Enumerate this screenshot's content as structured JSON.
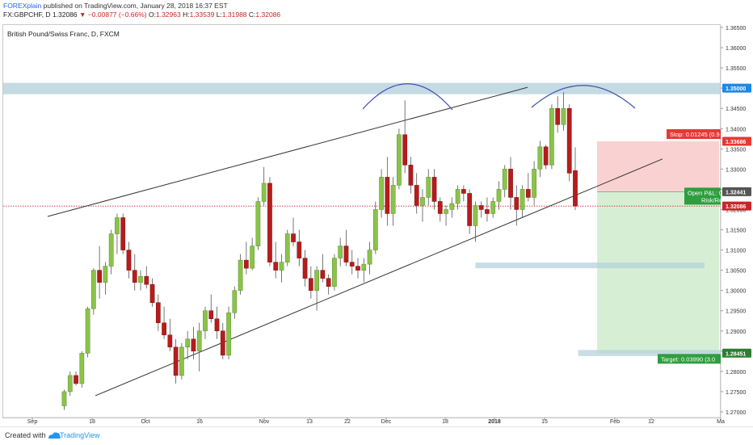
{
  "header": {
    "author": "FOREXplain",
    "published_text": "published on TradingView.com, January 28, 2018 16:37 EST",
    "symbol": "FX:GBPCHF, D",
    "last": "1.32086",
    "change": "−0.00877 (−0.66%)",
    "o_label": "O:",
    "o_value": "1.32963",
    "h_label": "H:",
    "h_value": "1.33539",
    "l_label": "L:",
    "l_value": "1.31988",
    "c_label": "C:",
    "c_value": "1.32086"
  },
  "footer": {
    "created_with": "Created with",
    "brand": "TradingView"
  },
  "colors": {
    "up": "#8bc34a",
    "down": "#b71c1c",
    "zone": "#b6d2dc",
    "stop_zone": "#f9c9c9",
    "target_zone": "#cfeccd",
    "price_line": "#c62828"
  },
  "chart_data": {
    "type": "candlestick",
    "title": "British Pound/Swiss Franc, D, FXCM",
    "y_ticks": [
      "1.27000",
      "1.27500",
      "1.28000",
      "1.28500",
      "1.29000",
      "1.29500",
      "1.30000",
      "1.30500",
      "1.31000",
      "1.31500",
      "1.32000",
      "1.32500",
      "1.33000",
      "1.33500",
      "1.34000",
      "1.34500",
      "1.35000",
      "1.35500",
      "1.36000",
      "1.36500"
    ],
    "ylim": [
      1.27,
      1.367
    ],
    "x_ticks": [
      "Sep",
      "18",
      "Oct",
      "16",
      "Nov",
      "13",
      "22",
      "Dec",
      "18",
      "2018",
      "15",
      "Feb",
      "12",
      "Ma"
    ],
    "candles": [
      {
        "o": 1.2715,
        "h": 1.2755,
        "l": 1.2705,
        "c": 1.275
      },
      {
        "o": 1.275,
        "h": 1.28,
        "l": 1.274,
        "c": 1.279
      },
      {
        "o": 1.279,
        "h": 1.28,
        "l": 1.2765,
        "c": 1.277
      },
      {
        "o": 1.277,
        "h": 1.285,
        "l": 1.276,
        "c": 1.2845
      },
      {
        "o": 1.2845,
        "h": 1.296,
        "l": 1.2835,
        "c": 1.2955
      },
      {
        "o": 1.2955,
        "h": 1.3055,
        "l": 1.294,
        "c": 1.305
      },
      {
        "o": 1.305,
        "h": 1.311,
        "l": 1.298,
        "c": 1.302
      },
      {
        "o": 1.302,
        "h": 1.307,
        "l": 1.299,
        "c": 1.306
      },
      {
        "o": 1.306,
        "h": 1.315,
        "l": 1.304,
        "c": 1.314
      },
      {
        "o": 1.314,
        "h": 1.319,
        "l": 1.309,
        "c": 1.318
      },
      {
        "o": 1.318,
        "h": 1.319,
        "l": 1.309,
        "c": 1.31
      },
      {
        "o": 1.31,
        "h": 1.312,
        "l": 1.303,
        "c": 1.305
      },
      {
        "o": 1.305,
        "h": 1.309,
        "l": 1.3,
        "c": 1.302
      },
      {
        "o": 1.302,
        "h": 1.305,
        "l": 1.3,
        "c": 1.3035
      },
      {
        "o": 1.3035,
        "h": 1.306,
        "l": 1.3005,
        "c": 1.3015
      },
      {
        "o": 1.3015,
        "h": 1.303,
        "l": 1.296,
        "c": 1.297
      },
      {
        "o": 1.297,
        "h": 1.299,
        "l": 1.29,
        "c": 1.292
      },
      {
        "o": 1.292,
        "h": 1.296,
        "l": 1.288,
        "c": 1.289
      },
      {
        "o": 1.289,
        "h": 1.293,
        "l": 1.285,
        "c": 1.286
      },
      {
        "o": 1.286,
        "h": 1.288,
        "l": 1.277,
        "c": 1.279
      },
      {
        "o": 1.279,
        "h": 1.287,
        "l": 1.278,
        "c": 1.286
      },
      {
        "o": 1.286,
        "h": 1.29,
        "l": 1.283,
        "c": 1.288
      },
      {
        "o": 1.288,
        "h": 1.291,
        "l": 1.283,
        "c": 1.285
      },
      {
        "o": 1.285,
        "h": 1.292,
        "l": 1.28,
        "c": 1.29
      },
      {
        "o": 1.29,
        "h": 1.296,
        "l": 1.288,
        "c": 1.295
      },
      {
        "o": 1.295,
        "h": 1.299,
        "l": 1.292,
        "c": 1.293
      },
      {
        "o": 1.293,
        "h": 1.296,
        "l": 1.288,
        "c": 1.29
      },
      {
        "o": 1.29,
        "h": 1.292,
        "l": 1.283,
        "c": 1.284
      },
      {
        "o": 1.284,
        "h": 1.296,
        "l": 1.283,
        "c": 1.2945
      },
      {
        "o": 1.2945,
        "h": 1.301,
        "l": 1.293,
        "c": 1.3
      },
      {
        "o": 1.3,
        "h": 1.309,
        "l": 1.299,
        "c": 1.3075
      },
      {
        "o": 1.3075,
        "h": 1.312,
        "l": 1.304,
        "c": 1.3055
      },
      {
        "o": 1.3055,
        "h": 1.313,
        "l": 1.305,
        "c": 1.311
      },
      {
        "o": 1.311,
        "h": 1.323,
        "l": 1.31,
        "c": 1.322
      },
      {
        "o": 1.322,
        "h": 1.3305,
        "l": 1.321,
        "c": 1.3265
      },
      {
        "o": 1.3265,
        "h": 1.328,
        "l": 1.306,
        "c": 1.307
      },
      {
        "o": 1.307,
        "h": 1.312,
        "l": 1.303,
        "c": 1.305
      },
      {
        "o": 1.305,
        "h": 1.309,
        "l": 1.302,
        "c": 1.307
      },
      {
        "o": 1.307,
        "h": 1.315,
        "l": 1.306,
        "c": 1.314
      },
      {
        "o": 1.314,
        "h": 1.318,
        "l": 1.311,
        "c": 1.312
      },
      {
        "o": 1.312,
        "h": 1.315,
        "l": 1.306,
        "c": 1.308
      },
      {
        "o": 1.308,
        "h": 1.31,
        "l": 1.301,
        "c": 1.303
      },
      {
        "o": 1.303,
        "h": 1.306,
        "l": 1.298,
        "c": 1.3
      },
      {
        "o": 1.3,
        "h": 1.306,
        "l": 1.295,
        "c": 1.305
      },
      {
        "o": 1.305,
        "h": 1.309,
        "l": 1.302,
        "c": 1.303
      },
      {
        "o": 1.303,
        "h": 1.304,
        "l": 1.299,
        "c": 1.301
      },
      {
        "o": 1.301,
        "h": 1.309,
        "l": 1.3,
        "c": 1.308
      },
      {
        "o": 1.308,
        "h": 1.313,
        "l": 1.306,
        "c": 1.311
      },
      {
        "o": 1.311,
        "h": 1.315,
        "l": 1.306,
        "c": 1.307
      },
      {
        "o": 1.307,
        "h": 1.31,
        "l": 1.304,
        "c": 1.306
      },
      {
        "o": 1.306,
        "h": 1.308,
        "l": 1.303,
        "c": 1.305
      },
      {
        "o": 1.305,
        "h": 1.308,
        "l": 1.302,
        "c": 1.3065
      },
      {
        "o": 1.3065,
        "h": 1.312,
        "l": 1.304,
        "c": 1.31
      },
      {
        "o": 1.31,
        "h": 1.322,
        "l": 1.309,
        "c": 1.32
      },
      {
        "o": 1.32,
        "h": 1.33,
        "l": 1.318,
        "c": 1.328
      },
      {
        "o": 1.328,
        "h": 1.333,
        "l": 1.316,
        "c": 1.319
      },
      {
        "o": 1.319,
        "h": 1.328,
        "l": 1.316,
        "c": 1.326
      },
      {
        "o": 1.326,
        "h": 1.34,
        "l": 1.325,
        "c": 1.3385
      },
      {
        "o": 1.3385,
        "h": 1.347,
        "l": 1.329,
        "c": 1.331
      },
      {
        "o": 1.331,
        "h": 1.333,
        "l": 1.324,
        "c": 1.326
      },
      {
        "o": 1.326,
        "h": 1.329,
        "l": 1.319,
        "c": 1.321
      },
      {
        "o": 1.321,
        "h": 1.325,
        "l": 1.317,
        "c": 1.323
      },
      {
        "o": 1.323,
        "h": 1.33,
        "l": 1.321,
        "c": 1.328
      },
      {
        "o": 1.328,
        "h": 1.33,
        "l": 1.32,
        "c": 1.322
      },
      {
        "o": 1.322,
        "h": 1.323,
        "l": 1.317,
        "c": 1.319
      },
      {
        "o": 1.319,
        "h": 1.321,
        "l": 1.316,
        "c": 1.32
      },
      {
        "o": 1.32,
        "h": 1.323,
        "l": 1.318,
        "c": 1.3215
      },
      {
        "o": 1.3215,
        "h": 1.326,
        "l": 1.32,
        "c": 1.325
      },
      {
        "o": 1.325,
        "h": 1.326,
        "l": 1.322,
        "c": 1.324
      },
      {
        "o": 1.324,
        "h": 1.325,
        "l": 1.314,
        "c": 1.316
      },
      {
        "o": 1.316,
        "h": 1.322,
        "l": 1.312,
        "c": 1.321
      },
      {
        "o": 1.321,
        "h": 1.322,
        "l": 1.318,
        "c": 1.32
      },
      {
        "o": 1.32,
        "h": 1.323,
        "l": 1.317,
        "c": 1.319
      },
      {
        "o": 1.319,
        "h": 1.323,
        "l": 1.318,
        "c": 1.322
      },
      {
        "o": 1.322,
        "h": 1.327,
        "l": 1.32,
        "c": 1.325
      },
      {
        "o": 1.325,
        "h": 1.331,
        "l": 1.323,
        "c": 1.33
      },
      {
        "o": 1.33,
        "h": 1.333,
        "l": 1.32,
        "c": 1.323
      },
      {
        "o": 1.323,
        "h": 1.326,
        "l": 1.316,
        "c": 1.32
      },
      {
        "o": 1.32,
        "h": 1.326,
        "l": 1.318,
        "c": 1.325
      },
      {
        "o": 1.325,
        "h": 1.329,
        "l": 1.322,
        "c": 1.323
      },
      {
        "o": 1.323,
        "h": 1.332,
        "l": 1.321,
        "c": 1.33
      },
      {
        "o": 1.33,
        "h": 1.337,
        "l": 1.328,
        "c": 1.3355
      },
      {
        "o": 1.3355,
        "h": 1.336,
        "l": 1.33,
        "c": 1.331
      },
      {
        "o": 1.331,
        "h": 1.346,
        "l": 1.33,
        "c": 1.345
      },
      {
        "o": 1.345,
        "h": 1.348,
        "l": 1.339,
        "c": 1.341
      },
      {
        "o": 1.341,
        "h": 1.349,
        "l": 1.3395,
        "c": 1.345
      },
      {
        "o": 1.345,
        "h": 1.346,
        "l": 1.327,
        "c": 1.329
      },
      {
        "o": 1.32963,
        "h": 1.33539,
        "l": 1.31988,
        "c": 1.32086
      }
    ],
    "levels": [
      {
        "label": "1.35000",
        "value": 1.35
      },
      {
        "label": "1.33686",
        "value": 1.33686
      },
      {
        "label": "1.32441",
        "value": 1.32441
      },
      {
        "label": "1.32086",
        "value": 1.32086
      },
      {
        "label": "1.28451",
        "value": 1.28451
      }
    ],
    "annotations": {
      "stop_label": "Stop: 0.01245 (0.9",
      "open_pnl_label": "Open P&L: 0",
      "risk_label": "Risk/Re",
      "target_label": "Target: 0.03990 (3.0"
    },
    "resistance_zone": [
      1.3485,
      1.3513
    ],
    "support_zone": [
      1.3055,
      1.3069
    ],
    "target_zone_line": [
      1.2838,
      1.2853
    ],
    "channel_upper": [
      [
        1.3183,
        0
      ],
      [
        1.3502,
        82
      ]
    ],
    "channel_lower": [
      [
        1.274,
        3
      ],
      [
        1.3325,
        94
      ]
    ],
    "legend": "none",
    "grid": false
  }
}
